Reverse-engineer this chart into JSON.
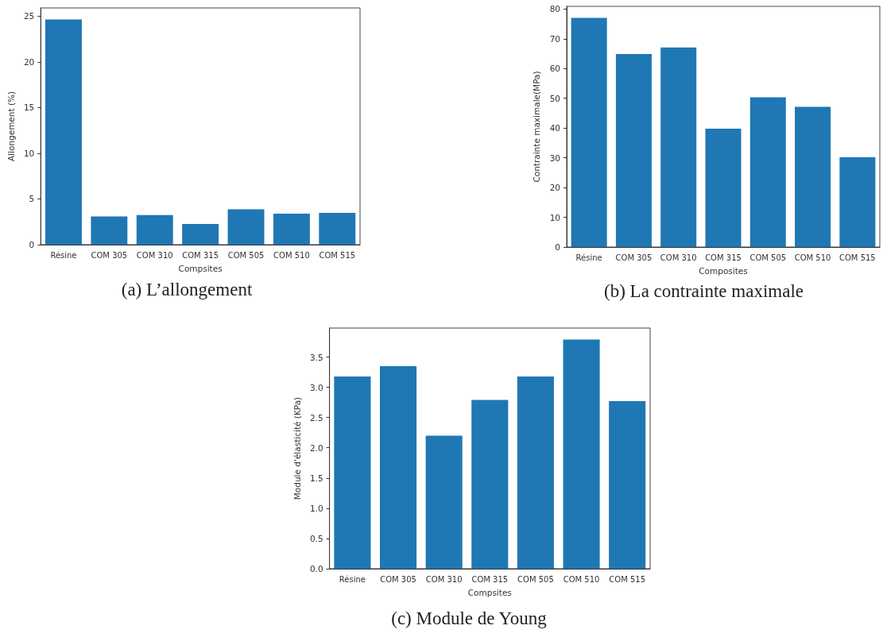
{
  "chart_data": [
    {
      "type": "bar",
      "title": "(a) L’allongement",
      "xlabel": "Compsites",
      "ylabel": "Allongement (%)",
      "categories": [
        "Résine",
        "COM 305",
        "COM 310",
        "COM 315",
        "COM 505",
        "COM 510",
        "COM 515"
      ],
      "values": [
        24.65,
        3.09,
        3.24,
        2.25,
        3.87,
        3.38,
        3.47
      ],
      "color": "#1f77b4",
      "ylim": [
        0,
        25.9
      ],
      "yticks": [
        0,
        5,
        10,
        15,
        20,
        25
      ],
      "grid": false
    },
    {
      "type": "bar",
      "title": "(b) La contrainte maximale",
      "xlabel": "Composites",
      "ylabel": "Contrainte maximale(MPa)",
      "categories": [
        "Résine",
        "COM 305",
        "COM 310",
        "COM 315",
        "COM 505",
        "COM 510",
        "COM 515"
      ],
      "values": [
        77.0,
        64.9,
        67.1,
        39.8,
        50.3,
        47.1,
        30.2
      ],
      "color": "#1f77b4",
      "ylim": [
        0,
        80.9
      ],
      "yticks": [
        0,
        10,
        20,
        30,
        40,
        50,
        60,
        70,
        80
      ],
      "grid": false
    },
    {
      "type": "bar",
      "title": "(c) Module de Young",
      "xlabel": "Compsites",
      "ylabel": "Module d'élasticité (KPa)",
      "categories": [
        "Résine",
        "COM 305",
        "COM 310",
        "COM 315",
        "COM 505",
        "COM 510",
        "COM 515"
      ],
      "values": [
        3.18,
        3.35,
        2.2,
        2.79,
        3.18,
        3.79,
        2.77
      ],
      "color": "#1f77b4",
      "ylim": [
        0,
        3.98
      ],
      "yticks": [
        {
          "value": 0,
          "label": "0.0"
        },
        {
          "value": 0.5,
          "label": "0.5"
        },
        {
          "value": 1,
          "label": "1.0"
        },
        {
          "value": 1.5,
          "label": "1.5"
        },
        {
          "value": 2,
          "label": "2.0"
        },
        {
          "value": 2.5,
          "label": "2.5"
        },
        {
          "value": 3,
          "label": "3.0"
        },
        {
          "value": 3.5,
          "label": "3.5"
        }
      ],
      "grid": false
    }
  ]
}
